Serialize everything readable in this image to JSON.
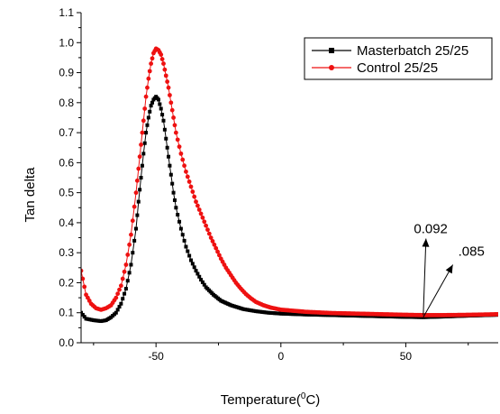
{
  "chart_data": {
    "type": "line",
    "title": "",
    "xlabel": "Temperature(",
    "xlabel_sup": "0",
    "xlabel_unit": "C)",
    "ylabel": "Tan delta",
    "xlim": [
      -80,
      87
    ],
    "ylim": [
      0.0,
      1.1
    ],
    "xticks": [
      -50,
      0,
      50
    ],
    "yticks": [
      0.0,
      0.1,
      0.2,
      0.3,
      0.4,
      0.5,
      0.6,
      0.7,
      0.8,
      0.9,
      1.0,
      1.1
    ],
    "xtick_labels": [
      "-50",
      "0",
      "50"
    ],
    "ytick_labels": [
      "0.0",
      "0.1",
      "0.2",
      "0.3",
      "0.4",
      "0.5",
      "0.6",
      "0.7",
      "0.8",
      "0.9",
      "1.0",
      "1.1"
    ],
    "grid": false,
    "legend_position": "top-right",
    "series": [
      {
        "name": "Masterbatch 25/25",
        "color": "#000000",
        "marker": "square",
        "points": [
          [
            -80,
            0.1
          ],
          [
            -78,
            0.08
          ],
          [
            -75,
            0.075
          ],
          [
            -72,
            0.072
          ],
          [
            -70,
            0.075
          ],
          [
            -68,
            0.085
          ],
          [
            -66,
            0.1
          ],
          [
            -64,
            0.13
          ],
          [
            -62,
            0.18
          ],
          [
            -60,
            0.26
          ],
          [
            -58,
            0.38
          ],
          [
            -57,
            0.47
          ],
          [
            -56,
            0.55
          ],
          [
            -55,
            0.63
          ],
          [
            -54,
            0.7
          ],
          [
            -53,
            0.75
          ],
          [
            -52,
            0.79
          ],
          [
            -51,
            0.81
          ],
          [
            -50,
            0.82
          ],
          [
            -49,
            0.81
          ],
          [
            -48,
            0.78
          ],
          [
            -47,
            0.74
          ],
          [
            -46,
            0.68
          ],
          [
            -45,
            0.62
          ],
          [
            -44,
            0.56
          ],
          [
            -43,
            0.5
          ],
          [
            -42,
            0.45
          ],
          [
            -40,
            0.38
          ],
          [
            -38,
            0.32
          ],
          [
            -36,
            0.275
          ],
          [
            -34,
            0.24
          ],
          [
            -32,
            0.21
          ],
          [
            -30,
            0.185
          ],
          [
            -27,
            0.16
          ],
          [
            -24,
            0.14
          ],
          [
            -20,
            0.125
          ],
          [
            -15,
            0.112
          ],
          [
            -10,
            0.105
          ],
          [
            -5,
            0.1
          ],
          [
            0,
            0.097
          ],
          [
            10,
            0.094
          ],
          [
            20,
            0.092
          ],
          [
            30,
            0.09
          ],
          [
            40,
            0.088
          ],
          [
            50,
            0.086
          ],
          [
            57,
            0.085
          ],
          [
            65,
            0.087
          ],
          [
            75,
            0.09
          ],
          [
            87,
            0.093
          ]
        ]
      },
      {
        "name": "Control 25/25",
        "color": "#ee1111",
        "marker": "circle",
        "points": [
          [
            -80,
            0.24
          ],
          [
            -78,
            0.16
          ],
          [
            -76,
            0.13
          ],
          [
            -74,
            0.115
          ],
          [
            -72,
            0.11
          ],
          [
            -70,
            0.115
          ],
          [
            -68,
            0.125
          ],
          [
            -66,
            0.15
          ],
          [
            -64,
            0.19
          ],
          [
            -62,
            0.26
          ],
          [
            -60,
            0.36
          ],
          [
            -58,
            0.5
          ],
          [
            -57,
            0.58
          ],
          [
            -56,
            0.66
          ],
          [
            -55,
            0.74
          ],
          [
            -54,
            0.82
          ],
          [
            -53,
            0.88
          ],
          [
            -52,
            0.93
          ],
          [
            -51,
            0.965
          ],
          [
            -50,
            0.98
          ],
          [
            -49,
            0.975
          ],
          [
            -48,
            0.96
          ],
          [
            -47,
            0.93
          ],
          [
            -46,
            0.89
          ],
          [
            -45,
            0.85
          ],
          [
            -44,
            0.8
          ],
          [
            -43,
            0.75
          ],
          [
            -42,
            0.7
          ],
          [
            -40,
            0.63
          ],
          [
            -38,
            0.57
          ],
          [
            -36,
            0.52
          ],
          [
            -34,
            0.47
          ],
          [
            -32,
            0.43
          ],
          [
            -30,
            0.39
          ],
          [
            -28,
            0.35
          ],
          [
            -26,
            0.315
          ],
          [
            -24,
            0.28
          ],
          [
            -22,
            0.25
          ],
          [
            -20,
            0.225
          ],
          [
            -18,
            0.2
          ],
          [
            -16,
            0.18
          ],
          [
            -14,
            0.162
          ],
          [
            -12,
            0.148
          ],
          [
            -10,
            0.136
          ],
          [
            -7,
            0.125
          ],
          [
            -4,
            0.117
          ],
          [
            0,
            0.11
          ],
          [
            10,
            0.103
          ],
          [
            20,
            0.099
          ],
          [
            30,
            0.097
          ],
          [
            40,
            0.095
          ],
          [
            50,
            0.093
          ],
          [
            57,
            0.092
          ],
          [
            65,
            0.092
          ],
          [
            75,
            0.093
          ],
          [
            87,
            0.095
          ]
        ]
      }
    ],
    "annotations": [
      {
        "text": "0.092",
        "point": [
          57,
          0.092
        ],
        "label_at": [
          60,
          0.365
        ]
      },
      {
        "text": ".085",
        "point": [
          57,
          0.085
        ],
        "label_at": [
          71,
          0.29
        ]
      }
    ]
  }
}
